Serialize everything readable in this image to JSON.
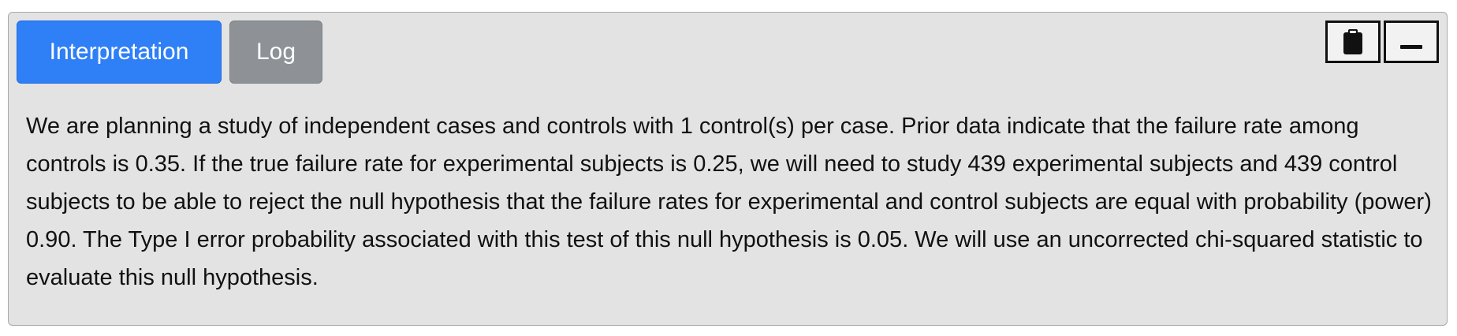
{
  "panel": {
    "tabs": [
      {
        "label": "Interpretation",
        "active": true
      },
      {
        "label": "Log",
        "active": false
      }
    ],
    "tools": [
      {
        "icon": "clipboard-icon"
      },
      {
        "icon": "minimize-icon"
      }
    ],
    "interpretation_text": "We are planning a study of independent cases and controls with 1 control(s) per case. Prior data indicate that the failure rate among controls is 0.35. If the true failure rate for experimental subjects is 0.25, we will need to study 439 experimental subjects and 439 control subjects to be able to reject the null hypothesis that the failure rates for experimental and control subjects are equal with probability (power) 0.90. The Type I error probability associated with this test of this null hypothesis is 0.05. We will use an uncorrected chi-squared statistic to evaluate this null hypothesis."
  },
  "colors": {
    "accent": "#2f7ff6",
    "inactive_tab": "#8e9296",
    "panel_bg": "#e3e3e3",
    "text": "#111111"
  }
}
